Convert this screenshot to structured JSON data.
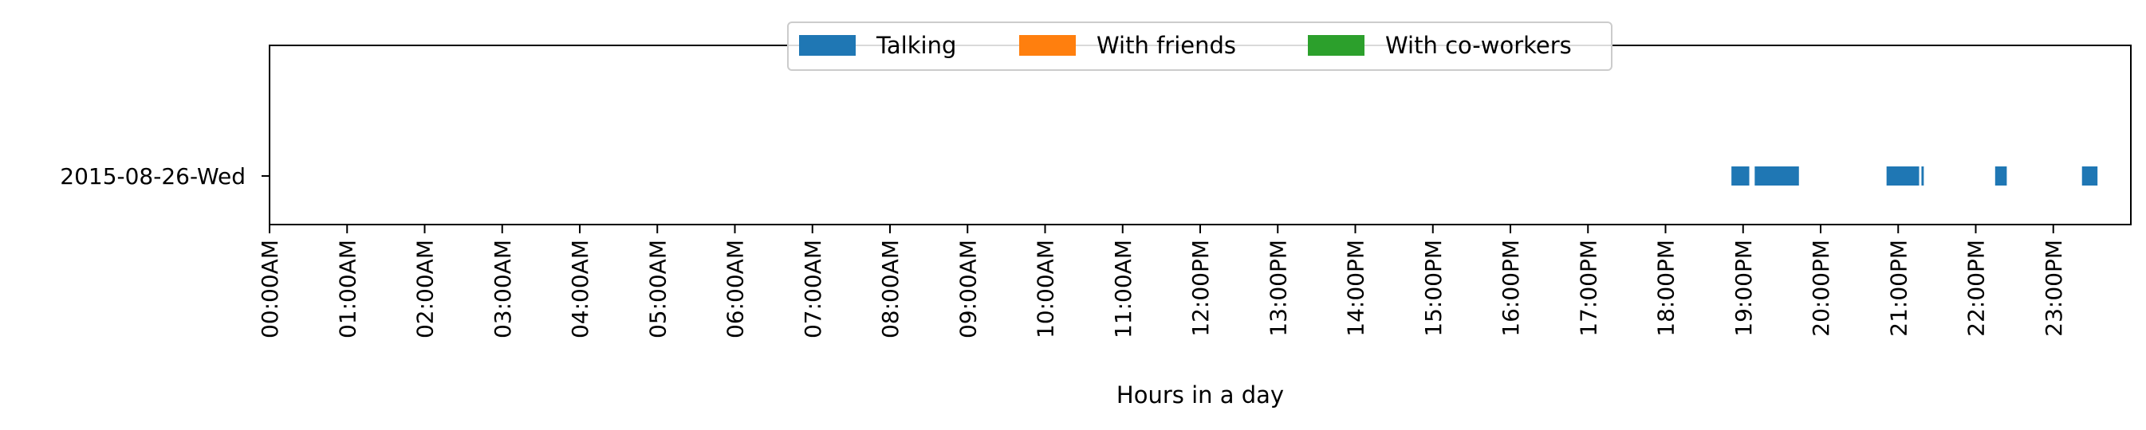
{
  "chart_data": {
    "type": "timeline",
    "categories": [
      "2015-08-26-Wed"
    ],
    "xlabel": "Hours in a day",
    "xlim": [
      0,
      24
    ],
    "x_ticks": [
      {
        "hour": 0,
        "label": "00:00AM"
      },
      {
        "hour": 1,
        "label": "01:00AM"
      },
      {
        "hour": 2,
        "label": "02:00AM"
      },
      {
        "hour": 3,
        "label": "03:00AM"
      },
      {
        "hour": 4,
        "label": "04:00AM"
      },
      {
        "hour": 5,
        "label": "05:00AM"
      },
      {
        "hour": 6,
        "label": "06:00AM"
      },
      {
        "hour": 7,
        "label": "07:00AM"
      },
      {
        "hour": 8,
        "label": "08:00AM"
      },
      {
        "hour": 9,
        "label": "09:00AM"
      },
      {
        "hour": 10,
        "label": "10:00AM"
      },
      {
        "hour": 11,
        "label": "11:00AM"
      },
      {
        "hour": 12,
        "label": "12:00PM"
      },
      {
        "hour": 13,
        "label": "13:00PM"
      },
      {
        "hour": 14,
        "label": "14:00PM"
      },
      {
        "hour": 15,
        "label": "15:00PM"
      },
      {
        "hour": 16,
        "label": "16:00PM"
      },
      {
        "hour": 17,
        "label": "17:00PM"
      },
      {
        "hour": 18,
        "label": "18:00PM"
      },
      {
        "hour": 19,
        "label": "19:00PM"
      },
      {
        "hour": 20,
        "label": "20:00PM"
      },
      {
        "hour": 21,
        "label": "21:00PM"
      },
      {
        "hour": 22,
        "label": "22:00PM"
      },
      {
        "hour": 23,
        "label": "23:00PM"
      }
    ],
    "legend": {
      "placement": "upper center",
      "entries": [
        {
          "name": "Talking",
          "color": "#1f77b4"
        },
        {
          "name": "With friends",
          "color": "#ff7f0e"
        },
        {
          "name": "With co-workers",
          "color": "#2ca02c"
        }
      ]
    },
    "series": [
      {
        "name": "Talking",
        "color": "#1f77b4",
        "intervals": [
          {
            "category": "2015-08-26-Wed",
            "start": 18.85,
            "end": 19.08
          },
          {
            "category": "2015-08-26-Wed",
            "start": 19.15,
            "end": 19.72
          },
          {
            "category": "2015-08-26-Wed",
            "start": 20.85,
            "end": 21.27
          },
          {
            "category": "2015-08-26-Wed",
            "start": 21.3,
            "end": 21.33
          },
          {
            "category": "2015-08-26-Wed",
            "start": 22.25,
            "end": 22.4
          },
          {
            "category": "2015-08-26-Wed",
            "start": 23.37,
            "end": 23.57
          }
        ]
      },
      {
        "name": "With friends",
        "color": "#ff7f0e",
        "intervals": []
      },
      {
        "name": "With co-workers",
        "color": "#2ca02c",
        "intervals": []
      }
    ],
    "grid": false
  }
}
